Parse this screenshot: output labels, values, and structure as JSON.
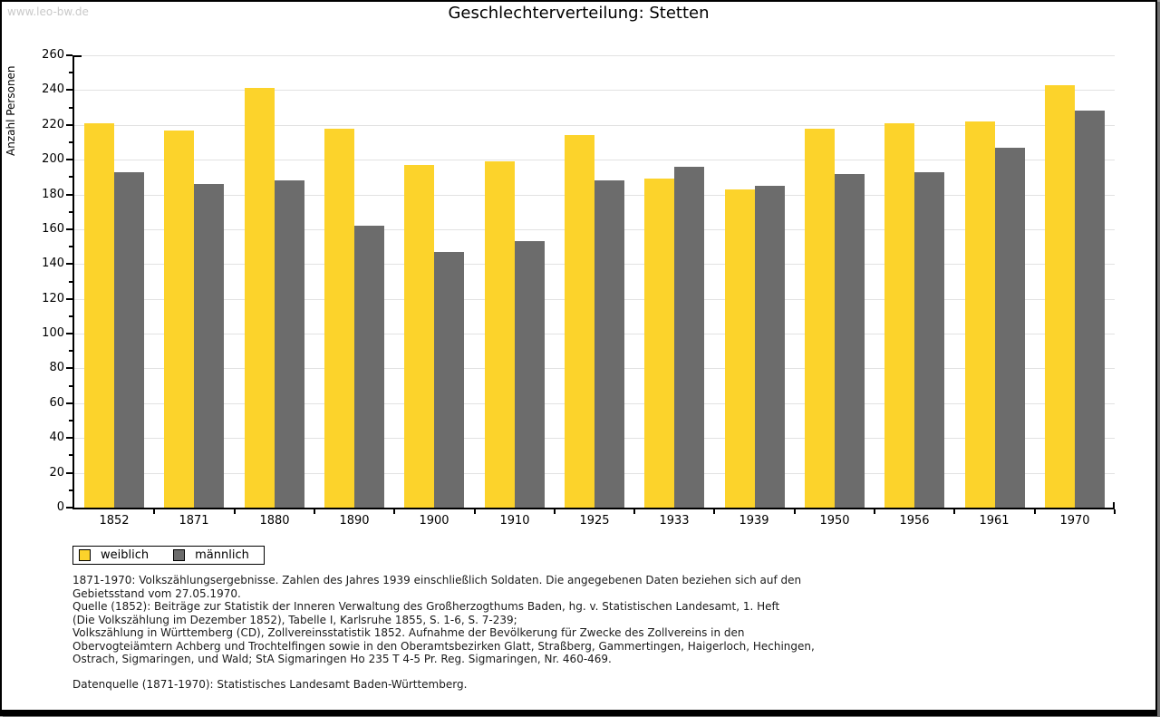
{
  "watermark": "www.leo-bw.de",
  "title": "Geschlechterverteilung: Stetten",
  "chart_data": {
    "type": "bar",
    "title": "Geschlechterverteilung: Stetten",
    "xlabel": "",
    "ylabel": "Anzahl Personen",
    "ylim": [
      0,
      260
    ],
    "yticks": [
      0,
      20,
      40,
      60,
      80,
      100,
      120,
      140,
      160,
      180,
      200,
      220,
      240,
      260
    ],
    "grid": true,
    "legend_position": "bottom-left",
    "categories": [
      "1852",
      "1871",
      "1880",
      "1890",
      "1900",
      "1910",
      "1925",
      "1933",
      "1939",
      "1950",
      "1956",
      "1961",
      "1970"
    ],
    "series": [
      {
        "name": "weiblich",
        "color": "#FCD32B",
        "values": [
          221,
          217,
          241,
          218,
          197,
          199,
          214,
          189,
          183,
          218,
          221,
          222,
          243
        ]
      },
      {
        "name": "männlich",
        "color": "#6C6C6C",
        "values": [
          193,
          186,
          188,
          162,
          147,
          153,
          188,
          196,
          185,
          192,
          193,
          207,
          228
        ]
      }
    ]
  },
  "footer": {
    "note_lines": [
      "1871-1970: Volkszählungsergebnisse. Zahlen des Jahres 1939 einschließlich Soldaten. Die angegebenen Daten beziehen sich auf den",
      "Gebietsstand vom 27.05.1970.",
      "Quelle (1852): Beiträge zur Statistik der Inneren Verwaltung des Großherzogthums Baden, hg. v. Statistischen Landesamt, 1. Heft",
      "(Die Volkszählung im Dezember 1852), Tabelle I, Karlsruhe 1855, S. 1-6, S. 7-239;",
      "Volkszählung in Württemberg (CD), Zollvereinsstatistik 1852. Aufnahme der Bevölkerung für Zwecke des Zollvereins in den",
      "Obervogteiämtern Achberg und Trochtelfingen sowie in den Oberamtsbezirken Glatt, Straßberg, Gammertingen, Haigerloch, Hechingen,",
      "Ostrach, Sigmaringen, und Wald; StA Sigmaringen Ho 235 T 4-5 Pr. Reg. Sigmaringen, Nr. 460-469."
    ],
    "datasource_line": "Datenquelle (1871-1970): Statistisches Landesamt Baden-Württemberg."
  },
  "colors": {
    "axis": "#000000",
    "gridline": "#e2e2e2",
    "background": "#ffffff",
    "page_background": "#a3a3a3",
    "watermark": "#c9c9c9",
    "text": "#1a1a1a",
    "weiblich": "#FCD32B",
    "männlich": "#6C6C6C"
  }
}
